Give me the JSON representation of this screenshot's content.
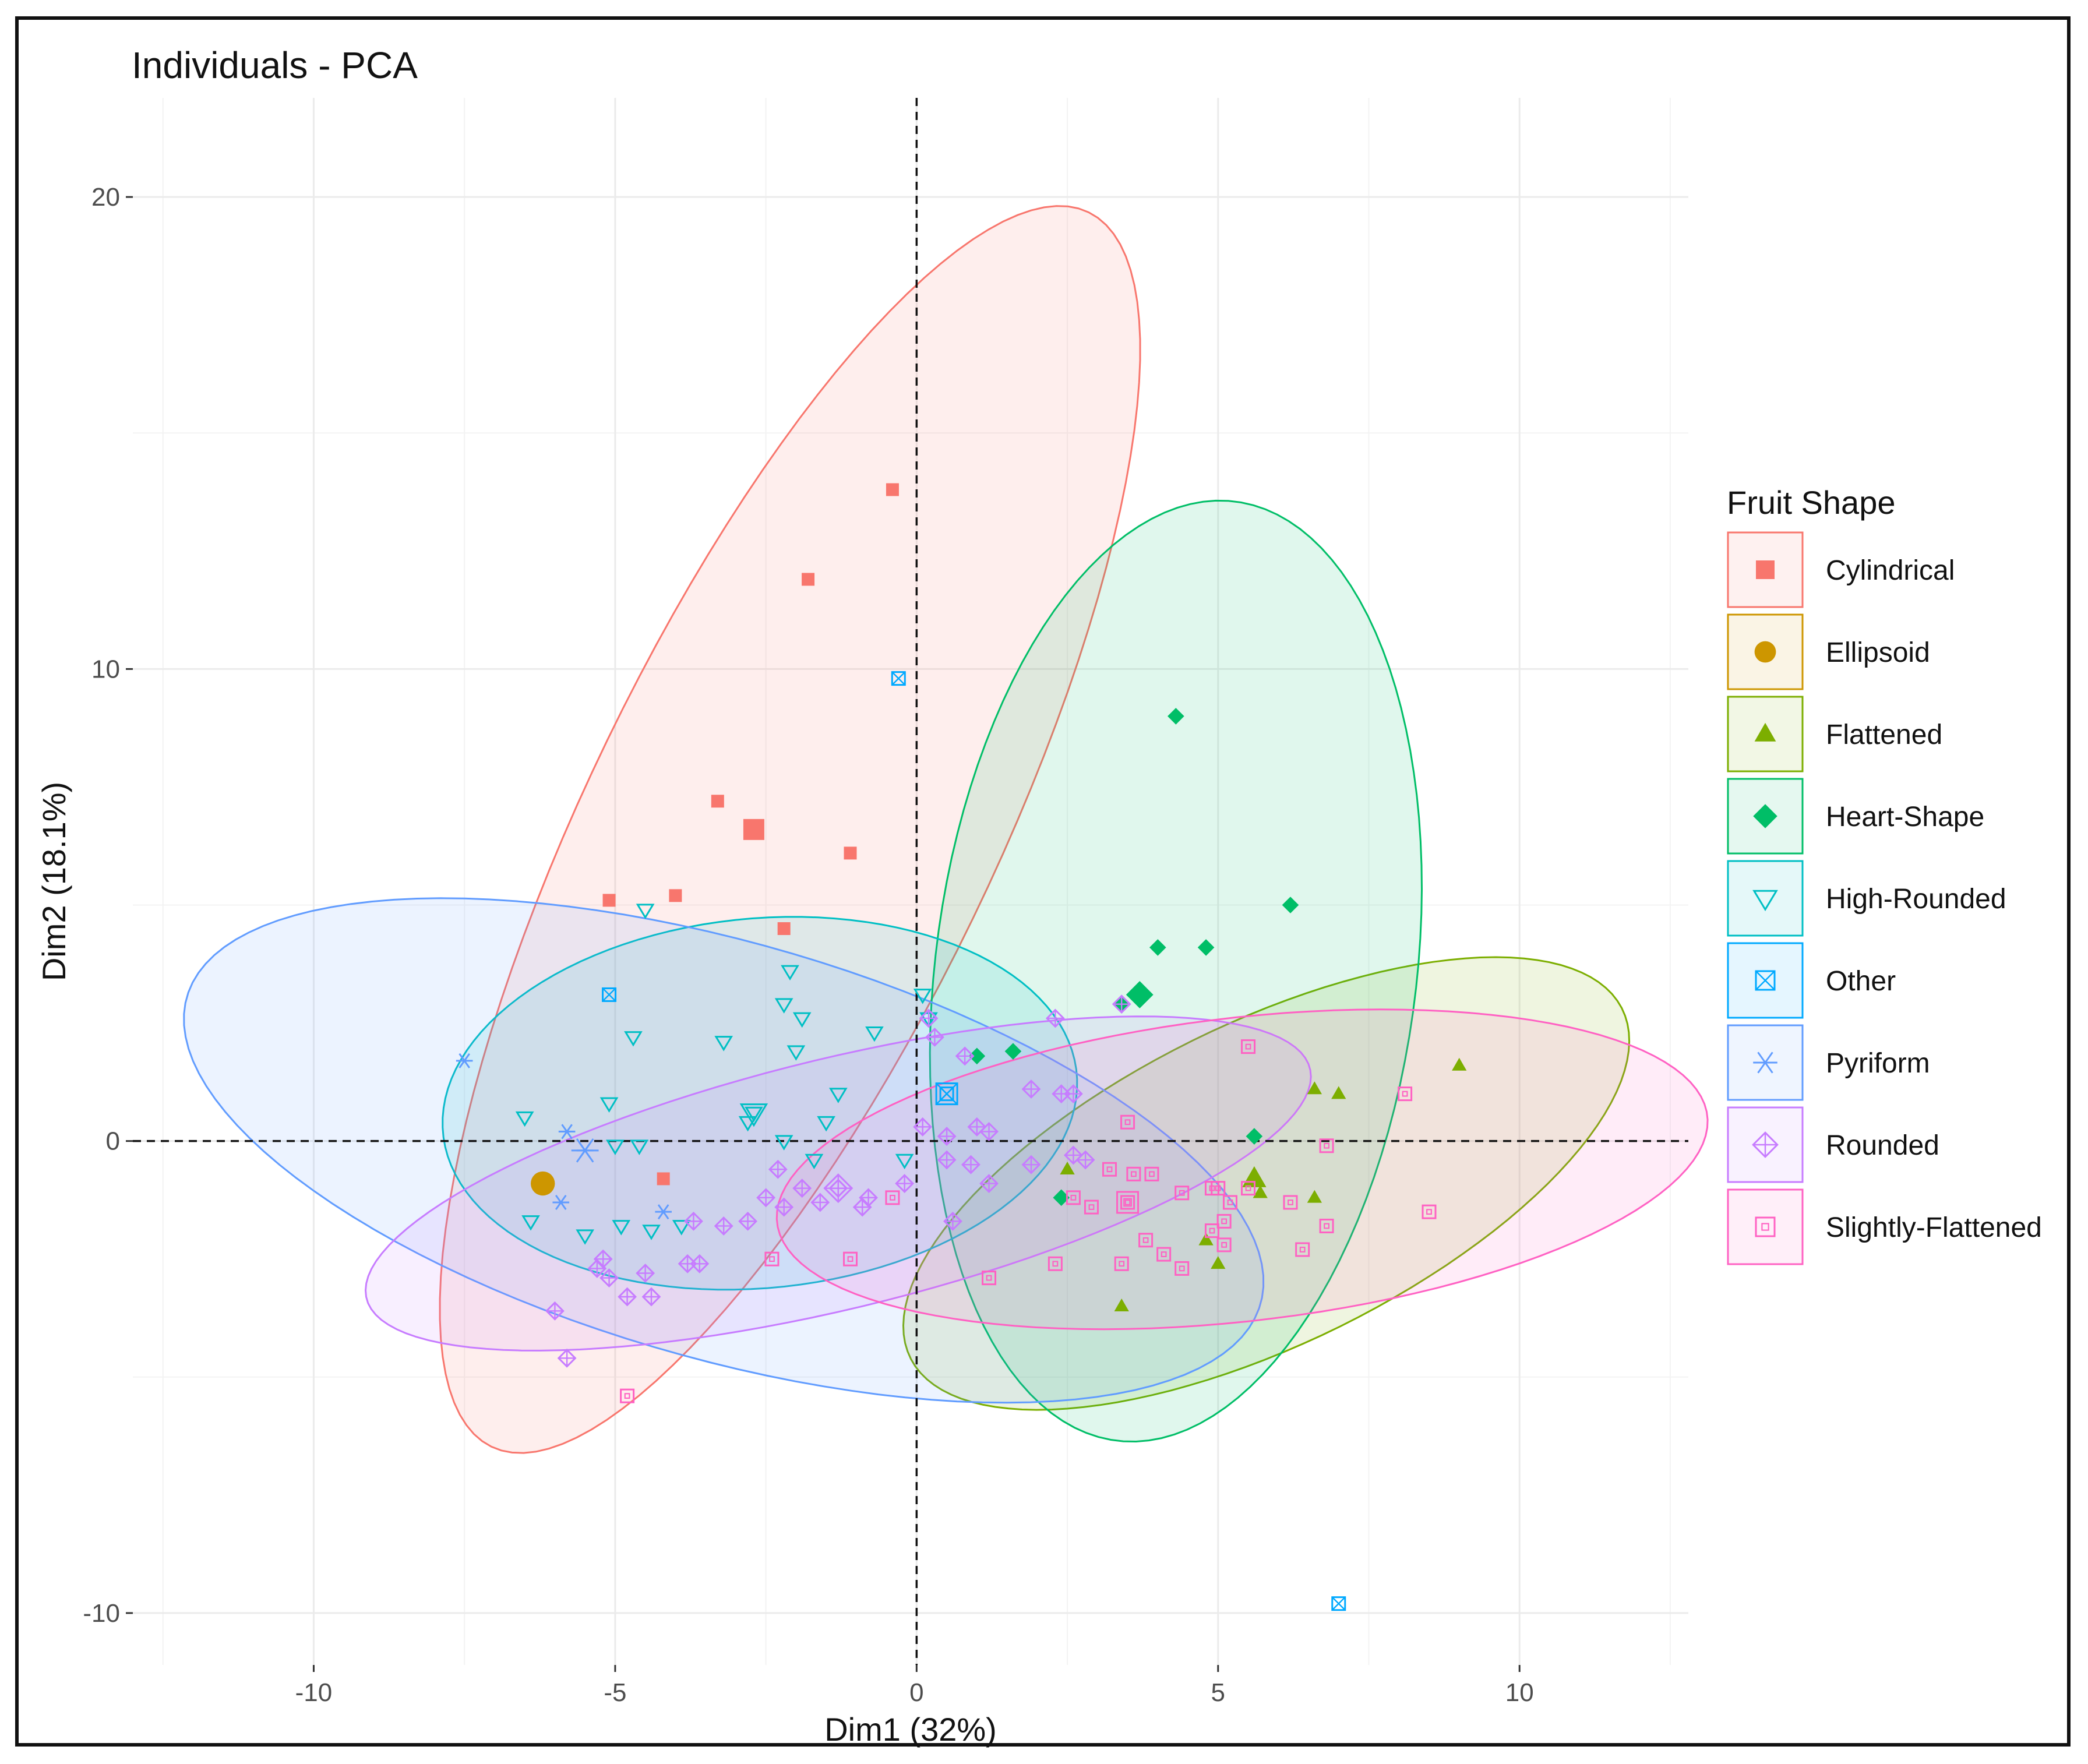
{
  "chart_data": {
    "type": "scatter",
    "title": "Individuals - PCA",
    "xlabel": "Dim1 (32%)",
    "ylabel": "Dim2 (18.1%)",
    "xlim": [
      -13,
      12.8
    ],
    "ylim": [
      -11.1,
      22.1
    ],
    "xticks": [
      -10,
      -5,
      0,
      5,
      10
    ],
    "yticks": [
      -10,
      0,
      10,
      20
    ],
    "grid": true,
    "reference_lines": {
      "x": 0,
      "y": 0,
      "style": "dashed"
    },
    "legend": {
      "title": "Fruit Shape",
      "position": "right"
    },
    "series": [
      {
        "name": "Cylindrical",
        "color": "#F8766D",
        "shape": "square-filled",
        "centroid": [
          -2.7,
          6.6
        ],
        "ellipse": {
          "cx": -2.1,
          "cy": 6.6,
          "rx": 14.0,
          "ry": 3.5,
          "angle_deg": 70
        },
        "points": [
          [
            -0.4,
            13.8
          ],
          [
            -1.8,
            11.9
          ],
          [
            -3.3,
            7.2
          ],
          [
            -1.1,
            6.1
          ],
          [
            -5.1,
            5.1
          ],
          [
            -4.0,
            5.2
          ],
          [
            -2.2,
            4.5
          ],
          [
            -4.2,
            -0.8
          ]
        ]
      },
      {
        "name": "Ellipsoid",
        "color": "#CD9600",
        "shape": "circle-filled",
        "centroid": [
          -6.2,
          -0.9
        ],
        "ellipse": null,
        "points": [
          [
            -6.2,
            -0.9
          ]
        ]
      },
      {
        "name": "Flattened",
        "color": "#7CAE00",
        "shape": "triangle-filled",
        "centroid": [
          5.6,
          -0.8
        ],
        "ellipse": {
          "cx": 5.8,
          "cy": -0.9,
          "rx": 7.0,
          "ry": 3.2,
          "angle_deg": 35
        },
        "points": [
          [
            9.0,
            1.6
          ],
          [
            6.6,
            1.1
          ],
          [
            7.0,
            1.0
          ],
          [
            2.5,
            -0.6
          ],
          [
            5.6,
            -0.8
          ],
          [
            5.7,
            -1.1
          ],
          [
            6.6,
            -1.2
          ],
          [
            4.8,
            -2.1
          ],
          [
            5.0,
            -2.6
          ],
          [
            3.4,
            -3.5
          ]
        ]
      },
      {
        "name": "Heart-Shape",
        "color": "#00BE67",
        "shape": "diamond-filled",
        "centroid": [
          3.7,
          3.1
        ],
        "ellipse": {
          "cx": 4.3,
          "cy": 3.6,
          "rx": 10.0,
          "ry": 4.0,
          "angle_deg": 85
        },
        "points": [
          [
            4.3,
            9.0
          ],
          [
            6.2,
            5.0
          ],
          [
            4.0,
            4.1
          ],
          [
            4.8,
            4.1
          ],
          [
            3.7,
            3.1
          ],
          [
            3.4,
            2.9
          ],
          [
            1.0,
            1.8
          ],
          [
            1.6,
            1.9
          ],
          [
            5.6,
            0.1
          ],
          [
            2.4,
            -1.2
          ]
        ]
      },
      {
        "name": "High-Rounded",
        "color": "#00BFC4",
        "shape": "triangle-down-open",
        "centroid": [
          -2.7,
          0.6
        ],
        "ellipse": {
          "cx": -2.6,
          "cy": 0.8,
          "rx": 5.3,
          "ry": 3.9,
          "angle_deg": 10
        },
        "points": [
          [
            -4.5,
            4.9
          ],
          [
            -2.1,
            3.6
          ],
          [
            -2.2,
            2.9
          ],
          [
            -1.9,
            2.6
          ],
          [
            -4.7,
            2.2
          ],
          [
            -3.2,
            2.1
          ],
          [
            -2.0,
            1.9
          ],
          [
            -0.7,
            2.3
          ],
          [
            0.1,
            3.1
          ],
          [
            0.2,
            2.6
          ],
          [
            -6.5,
            0.5
          ],
          [
            -5.1,
            0.8
          ],
          [
            -2.7,
            0.6
          ],
          [
            -2.8,
            0.4
          ],
          [
            -1.3,
            1.0
          ],
          [
            -1.5,
            0.4
          ],
          [
            -2.2,
            0.0
          ],
          [
            -1.7,
            -0.4
          ],
          [
            -5.0,
            -0.1
          ],
          [
            -4.6,
            -0.1
          ],
          [
            -6.4,
            -1.7
          ],
          [
            -5.5,
            -2.0
          ],
          [
            -4.9,
            -1.8
          ],
          [
            -4.4,
            -1.9
          ],
          [
            -3.9,
            -1.8
          ],
          [
            -0.2,
            -0.4
          ]
        ]
      },
      {
        "name": "Other",
        "color": "#00A9FF",
        "shape": "square-cross-open",
        "centroid": [
          0.5,
          1.0
        ],
        "ellipse": null,
        "points": [
          [
            -0.3,
            9.8
          ],
          [
            -5.1,
            3.1
          ],
          [
            0.5,
            1.0
          ],
          [
            7.0,
            -9.8
          ]
        ]
      },
      {
        "name": "Pyriform",
        "color": "#619CFF",
        "shape": "asterisk",
        "centroid": [
          -5.5,
          -0.2
        ],
        "ellipse": {
          "cx": -3.2,
          "cy": -0.2,
          "rx": 9.5,
          "ry": 4.3,
          "angle_deg": -22
        },
        "points": [
          [
            -7.5,
            1.7
          ],
          [
            -5.8,
            0.2
          ],
          [
            -5.5,
            -0.2
          ],
          [
            -5.9,
            -1.3
          ],
          [
            -4.2,
            -1.5
          ]
        ]
      },
      {
        "name": "Rounded",
        "color": "#C77CFF",
        "shape": "diamond-cross-open",
        "centroid": [
          -1.3,
          -1.0
        ],
        "ellipse": {
          "cx": -1.3,
          "cy": -0.9,
          "rx": 8.2,
          "ry": 2.6,
          "angle_deg": 18
        },
        "points": [
          [
            -5.8,
            -4.6
          ],
          [
            -6.0,
            -3.6
          ],
          [
            -5.3,
            -2.7
          ],
          [
            -5.2,
            -2.5
          ],
          [
            -5.1,
            -2.9
          ],
          [
            -4.8,
            -3.3
          ],
          [
            -4.5,
            -2.8
          ],
          [
            -4.4,
            -3.3
          ],
          [
            -3.8,
            -2.6
          ],
          [
            -3.6,
            -2.6
          ],
          [
            -3.7,
            -1.7
          ],
          [
            -3.2,
            -1.8
          ],
          [
            -2.8,
            -1.7
          ],
          [
            -2.5,
            -1.2
          ],
          [
            -2.2,
            -1.4
          ],
          [
            -1.9,
            -1.0
          ],
          [
            -2.3,
            -0.6
          ],
          [
            -1.6,
            -1.3
          ],
          [
            -1.3,
            -1.0
          ],
          [
            -0.9,
            -1.4
          ],
          [
            -0.8,
            -1.2
          ],
          [
            -0.2,
            -0.9
          ],
          [
            0.2,
            2.6
          ],
          [
            0.3,
            2.2
          ],
          [
            0.8,
            1.8
          ],
          [
            0.1,
            0.3
          ],
          [
            0.5,
            0.1
          ],
          [
            0.5,
            -0.4
          ],
          [
            0.9,
            -0.5
          ],
          [
            1.0,
            0.3
          ],
          [
            1.2,
            0.2
          ],
          [
            1.9,
            1.1
          ],
          [
            2.4,
            1.0
          ],
          [
            2.6,
            1.0
          ],
          [
            2.8,
            -0.4
          ],
          [
            2.6,
            -0.3
          ],
          [
            1.9,
            -0.5
          ],
          [
            2.3,
            2.6
          ],
          [
            3.4,
            2.9
          ],
          [
            1.2,
            -0.9
          ],
          [
            0.6,
            -1.7
          ]
        ]
      },
      {
        "name": "Slightly-Flattened",
        "color": "#FF61C3",
        "shape": "square-dot-open",
        "centroid": [
          3.5,
          -1.3
        ],
        "ellipse": {
          "cx": 5.4,
          "cy": -0.6,
          "rx": 7.8,
          "ry": 3.2,
          "angle_deg": 9
        },
        "points": [
          [
            5.5,
            2.0
          ],
          [
            8.1,
            1.0
          ],
          [
            6.8,
            -0.1
          ],
          [
            3.5,
            0.4
          ],
          [
            3.2,
            -0.6
          ],
          [
            3.6,
            -0.7
          ],
          [
            3.9,
            -0.7
          ],
          [
            4.9,
            -1.0
          ],
          [
            5.2,
            -1.3
          ],
          [
            5.0,
            -1.0
          ],
          [
            5.5,
            -1.0
          ],
          [
            4.4,
            -1.1
          ],
          [
            3.5,
            -1.3
          ],
          [
            2.9,
            -1.4
          ],
          [
            8.5,
            -1.5
          ],
          [
            5.1,
            -1.7
          ],
          [
            4.9,
            -1.9
          ],
          [
            6.2,
            -1.3
          ],
          [
            6.8,
            -1.8
          ],
          [
            3.8,
            -2.1
          ],
          [
            4.1,
            -2.4
          ],
          [
            6.4,
            -2.3
          ],
          [
            5.1,
            -2.2
          ],
          [
            3.4,
            -2.6
          ],
          [
            4.4,
            -2.7
          ],
          [
            2.3,
            -2.6
          ],
          [
            1.2,
            -2.9
          ],
          [
            2.6,
            -1.2
          ],
          [
            -4.8,
            -5.4
          ],
          [
            -0.4,
            -1.2
          ],
          [
            -2.4,
            -2.5
          ],
          [
            -1.1,
            -2.5
          ]
        ]
      }
    ]
  }
}
